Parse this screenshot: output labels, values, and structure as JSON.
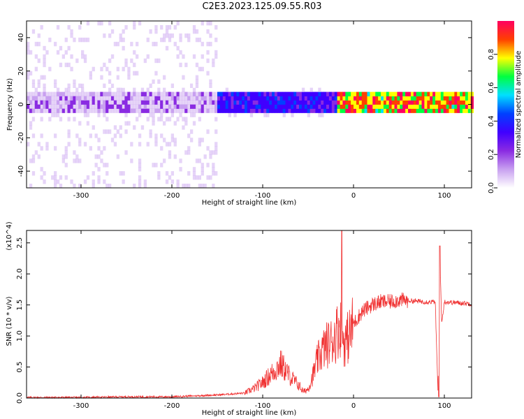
{
  "title": "C2E3.2023.125.09.55.R03",
  "chart_data": [
    {
      "type": "heatmap",
      "name": "spectrogram",
      "xlabel": "Height of straight line (km)",
      "ylabel": "Frequency (Hz)",
      "xlim": [
        -360,
        130
      ],
      "ylim": [
        -50,
        50
      ],
      "xticks": [
        -300,
        -200,
        -100,
        0,
        100
      ],
      "yticks": [
        -40,
        -20,
        0,
        20,
        40
      ],
      "colorbar": {
        "label": "Normalized spectral amplitude",
        "range": [
          0.0,
          1.0
        ],
        "ticks": [
          "0.0",
          "0.2",
          "0.4",
          "0.6",
          "0.8"
        ]
      },
      "description_regions": [
        {
          "x_range": [
            -360,
            -150
          ],
          "freq_spread": 50,
          "amplitude": 0.15
        },
        {
          "x_range": [
            -150,
            -20
          ],
          "freq_spread": 10,
          "amplitude": 0.35
        },
        {
          "x_range": [
            -20,
            130
          ],
          "freq_spread": 2,
          "amplitude": 0.85
        }
      ],
      "colorscale": [
        "#ffffff",
        "#c8a0f0",
        "#8a2be2",
        "#4000ff",
        "#0040ff",
        "#00e0ff",
        "#00ff40",
        "#ffff00",
        "#ff4000",
        "#ff0060"
      ]
    },
    {
      "type": "line",
      "name": "snr",
      "xlabel": "Height of straight line (km)",
      "ylabel": "SNR (10 * v/v)",
      "yscale_label": "(x10^4)",
      "xlim": [
        -360,
        130
      ],
      "ylim": [
        0,
        2.7
      ],
      "xticks": [
        -300,
        -200,
        -100,
        0,
        100
      ],
      "yticks": [
        "0.0",
        "0.5",
        "1.0",
        "1.5",
        "2.0",
        "2.5"
      ],
      "color": "#f03030",
      "x": [
        -360,
        -300,
        -250,
        -200,
        -150,
        -120,
        -110,
        -100,
        -90,
        -80,
        -70,
        -60,
        -55,
        -50,
        -45,
        -40,
        -35,
        -30,
        -25,
        -20,
        -15,
        -13,
        -10,
        -5,
        0,
        10,
        20,
        30,
        40,
        50,
        60,
        70,
        80,
        90,
        93,
        95,
        97,
        100,
        110,
        120,
        130
      ],
      "y": [
        0.01,
        0.01,
        0.02,
        0.02,
        0.05,
        0.08,
        0.15,
        0.25,
        0.4,
        0.55,
        0.35,
        0.2,
        0.1,
        0.15,
        0.35,
        0.6,
        0.75,
        0.85,
        0.9,
        1.0,
        1.2,
        1.0,
        0.9,
        1.0,
        1.2,
        1.4,
        1.5,
        1.55,
        1.55,
        1.58,
        1.57,
        1.56,
        1.55,
        1.55,
        0.05,
        2.4,
        1.2,
        1.55,
        1.54,
        1.53,
        1.52
      ]
    }
  ]
}
